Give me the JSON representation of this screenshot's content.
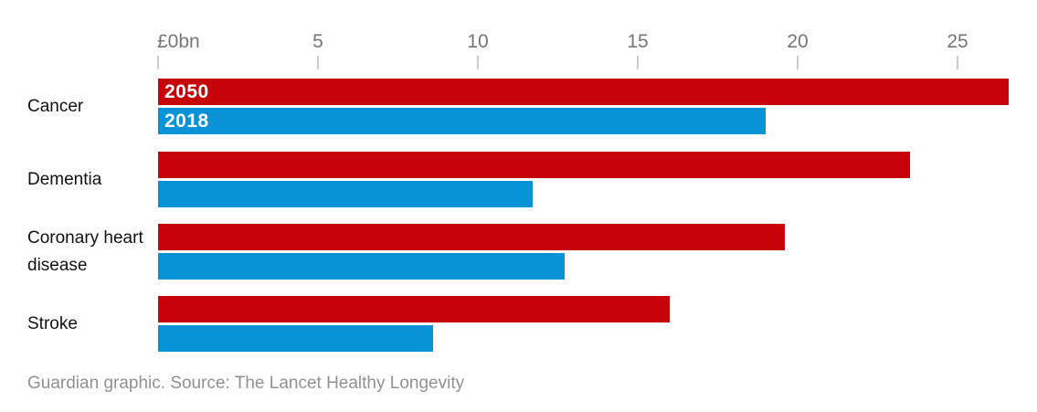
{
  "chart_data": {
    "type": "bar",
    "orientation": "horizontal",
    "categories": [
      "Cancer",
      "Dementia",
      "Coronary heart disease",
      "Stroke"
    ],
    "series": [
      {
        "name": "2050",
        "color": "#c50308",
        "values": [
          26.6,
          23.5,
          19.6,
          16.0
        ]
      },
      {
        "name": "2018",
        "color": "#0993d6",
        "values": [
          19.0,
          11.7,
          12.7,
          8.6
        ]
      }
    ],
    "x_axis": {
      "unit_label": "£0bn",
      "tick_values": [
        0,
        5,
        10,
        15,
        20,
        25
      ],
      "tick_labels": [
        "£0bn",
        "5",
        "10",
        "15",
        "20",
        "25"
      ],
      "range": [
        0,
        27
      ],
      "grid": false
    },
    "legend_position": "inside-first-bars",
    "value_unit": "£bn"
  },
  "caption": "Guardian graphic. Source: The Lancet Healthy Longevity",
  "colors": {
    "series_2050": "#c50308",
    "series_2018": "#0993d6",
    "axis_text": "#767676",
    "tick": "#cccccc",
    "category_text": "#121212",
    "caption_text": "#919191",
    "background": "#ffffff",
    "bar_label_text": "#ffffff"
  }
}
